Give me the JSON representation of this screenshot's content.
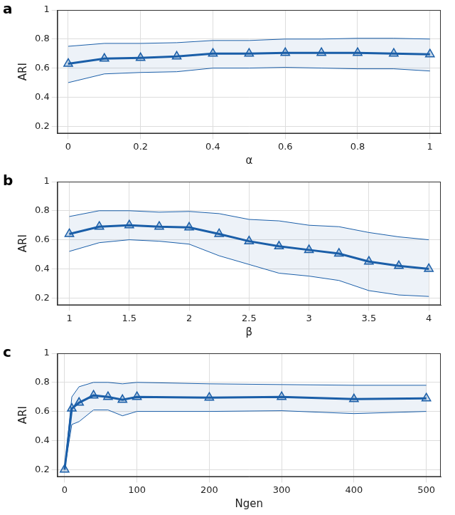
{
  "chart_data": [
    {
      "type": "line",
      "title": "a",
      "x_label": "α",
      "y_label": "ARI",
      "x": [
        0,
        0.1,
        0.2,
        0.3,
        0.4,
        0.5,
        0.6,
        0.7,
        0.8,
        0.9,
        1
      ],
      "series": [
        {
          "color": "#1a5ea8",
          "marker": "triangle",
          "values": [
            0.63,
            0.665,
            0.67,
            0.68,
            0.7,
            0.7,
            0.705,
            0.705,
            0.705,
            0.7,
            0.695
          ]
        },
        {
          "color": "#1a5ea8",
          "values": [
            0.75,
            0.77,
            0.77,
            0.775,
            0.79,
            0.79,
            0.8,
            0.8,
            0.805,
            0.805,
            0.8
          ]
        },
        {
          "color": "#1a5ea8",
          "values": [
            0.5,
            0.56,
            0.57,
            0.575,
            0.6,
            0.6,
            0.605,
            0.6,
            0.595,
            0.595,
            0.58
          ]
        }
      ],
      "xlim": [
        -0.03,
        1.03
      ],
      "xticks": [
        0,
        0.2,
        0.4,
        0.6,
        0.8,
        1
      ],
      "ylim": [
        0.15,
        1
      ],
      "yticks": [
        0.2,
        0.4,
        0.6,
        0.8,
        1
      ],
      "grid": true
    },
    {
      "type": "line",
      "title": "b",
      "x_label": "β",
      "y_label": "ARI",
      "x": [
        1,
        1.25,
        1.5,
        1.75,
        2,
        2.25,
        2.5,
        2.75,
        3,
        3.25,
        3.5,
        3.75,
        4
      ],
      "series": [
        {
          "color": "#1a5ea8",
          "marker": "triangle",
          "values": [
            0.64,
            0.69,
            0.7,
            0.69,
            0.685,
            0.64,
            0.59,
            0.555,
            0.53,
            0.505,
            0.45,
            0.42,
            0.4
          ]
        },
        {
          "color": "#1a5ea8",
          "values": [
            0.76,
            0.8,
            0.8,
            0.79,
            0.795,
            0.78,
            0.74,
            0.73,
            0.7,
            0.69,
            0.65,
            0.62,
            0.6
          ]
        },
        {
          "color": "#1a5ea8",
          "values": [
            0.52,
            0.58,
            0.6,
            0.59,
            0.57,
            0.49,
            0.43,
            0.37,
            0.35,
            0.32,
            0.25,
            0.22,
            0.21
          ]
        }
      ],
      "xlim": [
        0.9,
        4.1
      ],
      "xticks": [
        1,
        1.5,
        2,
        2.5,
        3,
        3.5,
        4
      ],
      "ylim": [
        0.15,
        1
      ],
      "yticks": [
        0.2,
        0.4,
        0.6,
        0.8,
        1
      ],
      "grid": true
    },
    {
      "type": "line",
      "title": "c",
      "x_label": "Ngen",
      "y_label": "ARI",
      "x": [
        0,
        10,
        20,
        40,
        60,
        80,
        100,
        200,
        300,
        400,
        500
      ],
      "series": [
        {
          "color": "#1a5ea8",
          "marker": "triangle",
          "values": [
            0.2,
            0.62,
            0.66,
            0.71,
            0.7,
            0.68,
            0.7,
            0.695,
            0.7,
            0.685,
            0.69
          ]
        },
        {
          "color": "#1a5ea8",
          "values": [
            0.2,
            0.7,
            0.77,
            0.8,
            0.8,
            0.79,
            0.8,
            0.79,
            0.785,
            0.78,
            0.78
          ]
        },
        {
          "color": "#1a5ea8",
          "values": [
            0.2,
            0.51,
            0.53,
            0.61,
            0.61,
            0.57,
            0.6,
            0.6,
            0.605,
            0.585,
            0.6
          ]
        }
      ],
      "xlim": [
        -10,
        520
      ],
      "xticks": [
        0,
        100,
        200,
        300,
        400,
        500
      ],
      "ylim": [
        0.15,
        1
      ],
      "yticks": [
        0.2,
        0.4,
        0.6,
        0.8,
        1
      ],
      "grid": true
    }
  ]
}
